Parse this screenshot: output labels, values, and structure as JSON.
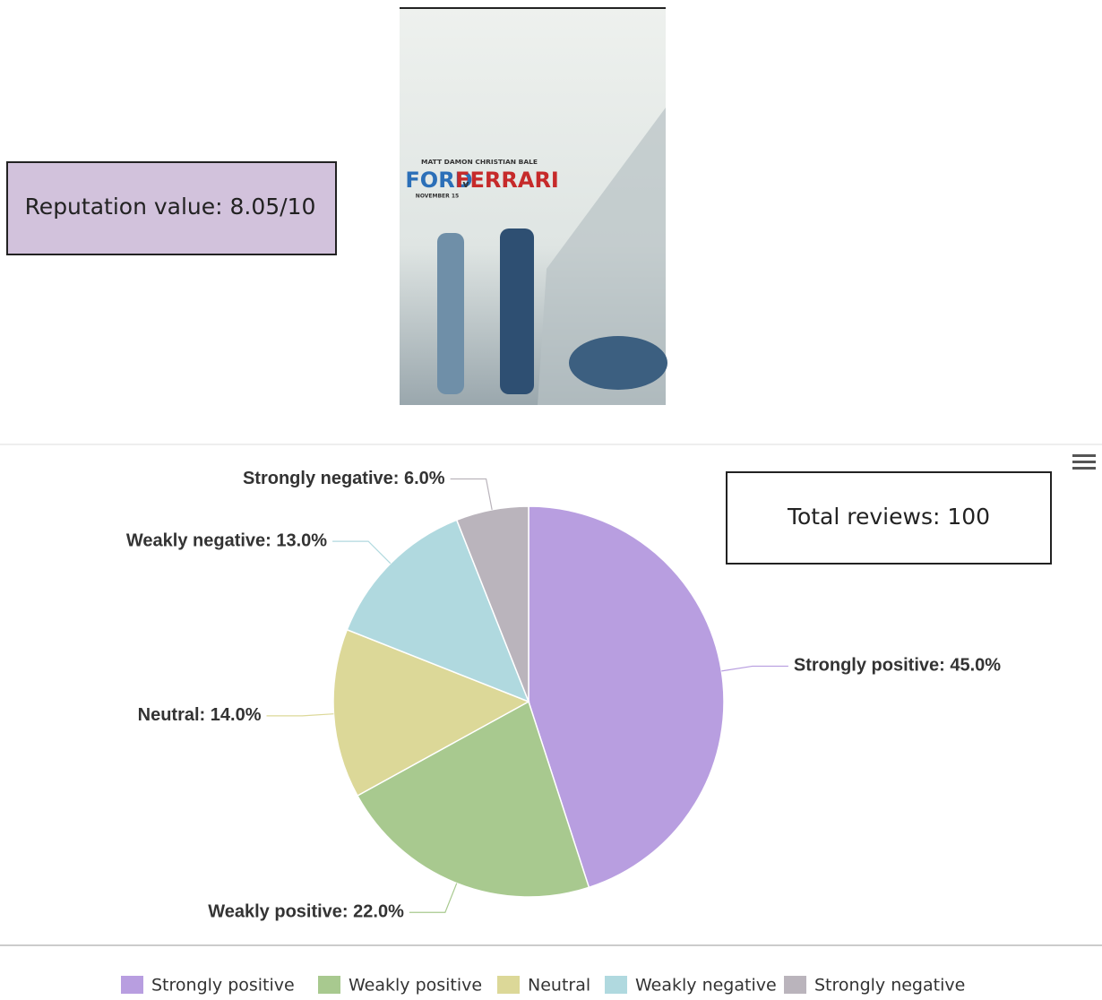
{
  "reputation": "Reputation value: 8.05/10",
  "poster": {
    "cast": "MATT DAMON   CHRISTIAN BALE",
    "title_left": "FORD",
    "title_mid": "v",
    "title_right": "FERRARI",
    "date": "NOVEMBER 15"
  },
  "chart_data": {
    "type": "pie",
    "categories": [
      "Strongly positive",
      "Weakly positive",
      "Neutral",
      "Weakly negative",
      "Strongly negative"
    ],
    "values": [
      45,
      22,
      14,
      13,
      6
    ],
    "value_labels": [
      "Strongly positive: 45.0%",
      "Weakly positive: 22.0%",
      "Neutral: 14.0%",
      "Weakly negative: 13.0%",
      "Strongly negative: 6.0%"
    ],
    "colors": [
      "#b89ee0",
      "#a8c98f",
      "#dcd898",
      "#b0d9df",
      "#bab4bc"
    ],
    "annotation": "Total reviews: 100",
    "legend": "bottom"
  }
}
